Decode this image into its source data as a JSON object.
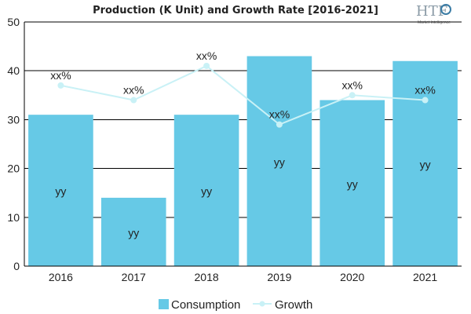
{
  "chart_data": {
    "type": "bar",
    "title": "Production (K Unit) and Growth Rate [2016-2021]",
    "categories": [
      "2016",
      "2017",
      "2018",
      "2019",
      "2020",
      "2021"
    ],
    "series": [
      {
        "name": "Consumption",
        "type": "bar",
        "values": [
          31,
          14,
          31,
          43,
          34,
          42
        ],
        "labels": [
          "yy",
          "yy",
          "yy",
          "yy",
          "yy",
          "yy"
        ],
        "color": "#66c9e6"
      },
      {
        "name": "Growth",
        "type": "line",
        "values": [
          37,
          34,
          41,
          29,
          35,
          34
        ],
        "labels": [
          "xx%",
          "xx%",
          "xx%",
          "xx%",
          "xx%",
          "xx%"
        ],
        "color": "#c9f1f6"
      }
    ],
    "xlabel": "",
    "ylabel": "",
    "ylim": [
      0,
      50
    ],
    "yticks": [
      0,
      10,
      20,
      30,
      40,
      50
    ],
    "grid": true,
    "legend_position": "bottom"
  },
  "logo": {
    "text": "HTF",
    "subtitle": "Market Intelligence"
  }
}
